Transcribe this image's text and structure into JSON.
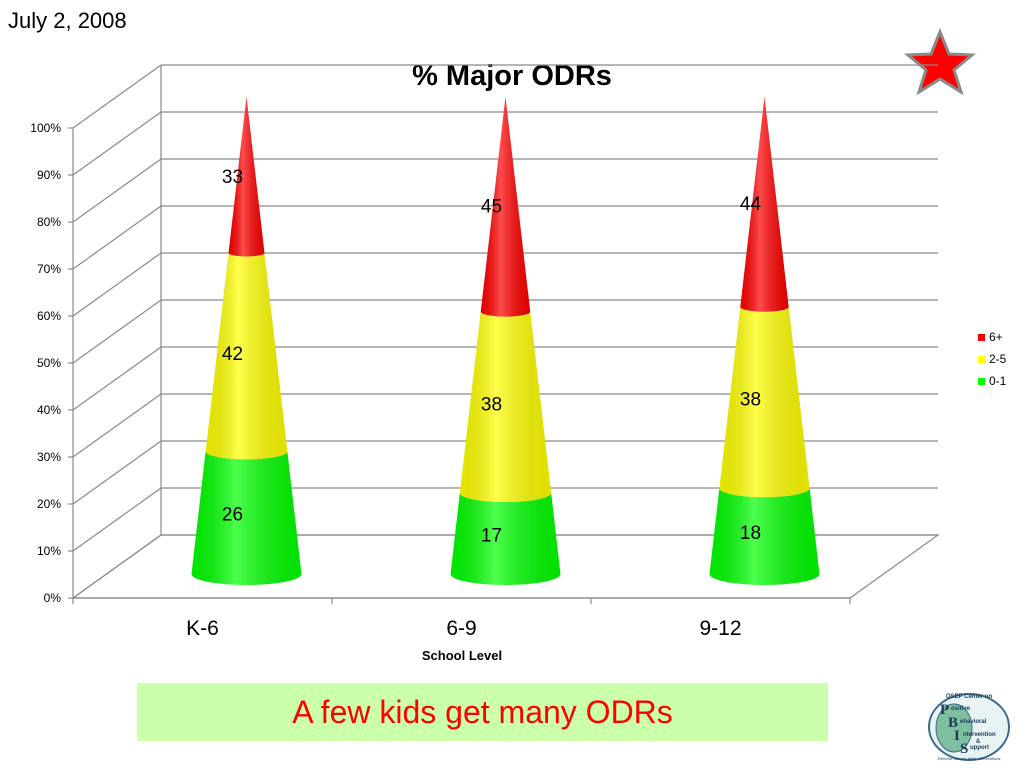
{
  "slide": {
    "date": "July 2, 2008",
    "caption": "A few kids get many ODRs",
    "logo": {
      "top_text": "OSEP Center on",
      "words": [
        "ositive",
        "ehavioral",
        "ntervention",
        "&",
        "upport"
      ],
      "letters": [
        "P",
        "B",
        "I",
        "S"
      ],
      "bottom_text": "Effective School-Wide Interventions"
    },
    "icons": [
      "star-icon",
      "pbis-logo"
    ],
    "colors": {
      "caption_bg": "#ccffaa",
      "caption_text": "#ff0000",
      "star": "#ff0000"
    }
  },
  "chart_data": {
    "type": "bar",
    "style": "3d-cone-stacked",
    "title": "% Major ODRs",
    "xlabel": "School Level",
    "ylabel": "",
    "categories": [
      "K-6",
      "6-9",
      "9-12"
    ],
    "ylim": [
      0,
      100
    ],
    "yticks": [
      "0%",
      "10%",
      "20%",
      "30%",
      "40%",
      "50%",
      "60%",
      "70%",
      "80%",
      "90%",
      "100%"
    ],
    "series": [
      {
        "name": "0-1",
        "values": [
          26,
          17,
          18
        ],
        "color": "#00ff00"
      },
      {
        "name": "2-5",
        "values": [
          42,
          38,
          38
        ],
        "color": "#ffff00"
      },
      {
        "name": "6+",
        "values": [
          33,
          45,
          44
        ],
        "color": "#ff0000"
      }
    ],
    "legend": {
      "placement": "right",
      "order": [
        "6+",
        "2-5",
        "0-1"
      ]
    },
    "grid": true
  }
}
